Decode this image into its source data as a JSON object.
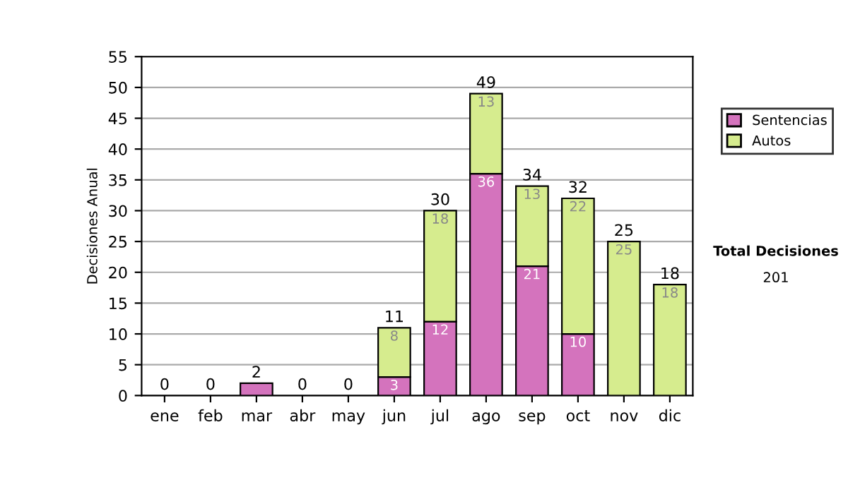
{
  "chart_data": {
    "type": "bar",
    "stacked": true,
    "ylabel": "Decisiones Anual",
    "categories": [
      "ene",
      "feb",
      "mar",
      "abr",
      "may",
      "jun",
      "jul",
      "ago",
      "sep",
      "oct",
      "nov",
      "dic"
    ],
    "series": [
      {
        "name": "Sentencias",
        "color": "#d473bd",
        "values": [
          0,
          0,
          2,
          0,
          0,
          3,
          12,
          36,
          21,
          10,
          0,
          0
        ],
        "value_labels": [
          null,
          null,
          null,
          null,
          null,
          "3",
          "12",
          "36",
          "21",
          "10",
          null,
          null
        ]
      },
      {
        "name": "Autos",
        "color": "#d6ec8e",
        "values": [
          0,
          0,
          0,
          0,
          0,
          8,
          18,
          13,
          13,
          22,
          25,
          18
        ],
        "value_labels": [
          null,
          null,
          null,
          null,
          null,
          "8",
          "18",
          "13",
          "13",
          "22",
          "25",
          "18"
        ]
      }
    ],
    "totals": [
      "0",
      "0",
      "2",
      "0",
      "0",
      "11",
      "30",
      "49",
      "34",
      "32",
      "25",
      "18"
    ],
    "ylim": [
      0,
      55
    ],
    "yticks": [
      0,
      5,
      10,
      15,
      20,
      25,
      30,
      35,
      40,
      45,
      50,
      55
    ],
    "grid": "y",
    "legend": "right",
    "annotations": [
      "Total Decisiones",
      "201"
    ]
  }
}
